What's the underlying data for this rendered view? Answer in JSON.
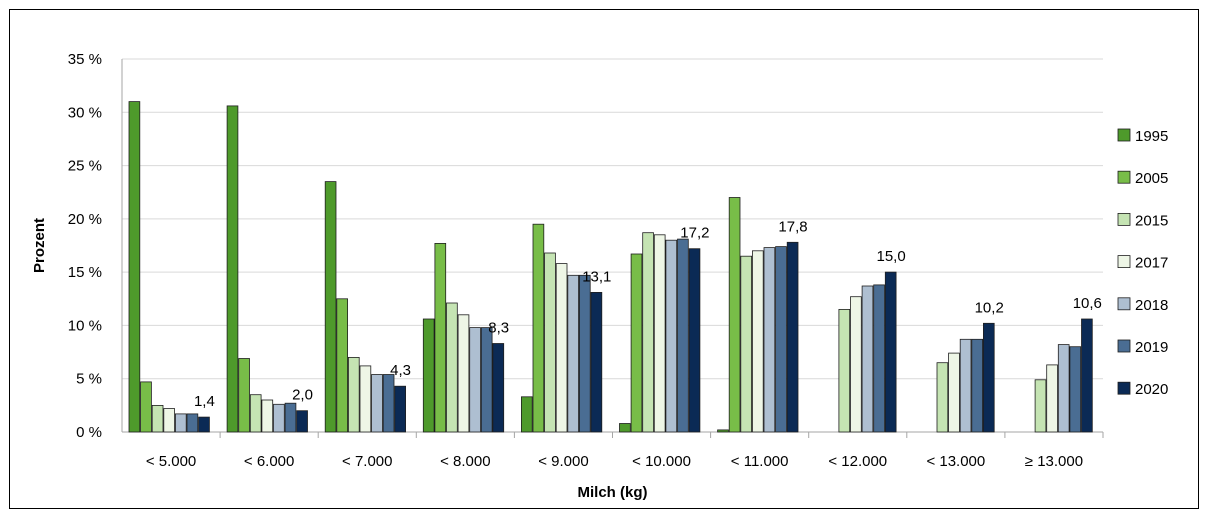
{
  "chart_data": {
    "type": "bar",
    "xlabel": "Milch (kg)",
    "ylabel": "Prozent",
    "ylim": [
      0,
      35
    ],
    "yticks": [
      "0 %",
      "5 %",
      "10 %",
      "15 %",
      "20 %",
      "25 %",
      "30 %",
      "35 %"
    ],
    "grid": true,
    "legend_position": "right",
    "categories": [
      "< 5.000",
      "< 6.000",
      "< 7.000",
      "< 8.000",
      "< 9.000",
      "< 10.000",
      "< 11.000",
      "< 12.000",
      "< 13.000",
      "≥ 13.000"
    ],
    "series": [
      {
        "name": "1995",
        "color": "#4e9a2b",
        "values": [
          31.0,
          30.6,
          23.5,
          10.6,
          3.3,
          0.8,
          0.2,
          null,
          null,
          null
        ]
      },
      {
        "name": "2005",
        "color": "#78bd48",
        "values": [
          4.7,
          6.9,
          12.5,
          17.7,
          19.5,
          16.7,
          22.0,
          null,
          null,
          null
        ]
      },
      {
        "name": "2015",
        "color": "#c5e4b3",
        "values": [
          2.5,
          3.5,
          7.0,
          12.1,
          16.8,
          18.7,
          16.5,
          11.5,
          6.5,
          4.9
        ]
      },
      {
        "name": "2017",
        "color": "#eef6e6",
        "values": [
          2.2,
          3.0,
          6.2,
          11.0,
          15.8,
          18.5,
          17.0,
          12.7,
          7.4,
          6.3
        ]
      },
      {
        "name": "2018",
        "color": "#aebfd1",
        "values": [
          1.7,
          2.6,
          5.4,
          9.8,
          14.7,
          18.0,
          17.3,
          13.7,
          8.7,
          8.2
        ]
      },
      {
        "name": "2019",
        "color": "#4a6d93",
        "values": [
          1.7,
          2.7,
          5.4,
          9.8,
          14.7,
          18.1,
          17.4,
          13.8,
          8.7,
          8.0
        ]
      },
      {
        "name": "2020",
        "color": "#0b2a55",
        "values": [
          1.4,
          2.0,
          4.3,
          8.3,
          13.1,
          17.2,
          17.8,
          15.0,
          10.2,
          10.6
        ]
      }
    ],
    "data_labels": {
      "series": "2020",
      "labels": [
        "1,4",
        "2,0",
        "4,3",
        "8,3",
        "13,1",
        "17,2",
        "17,8",
        "15,0",
        "10,2",
        "10,6"
      ]
    }
  }
}
